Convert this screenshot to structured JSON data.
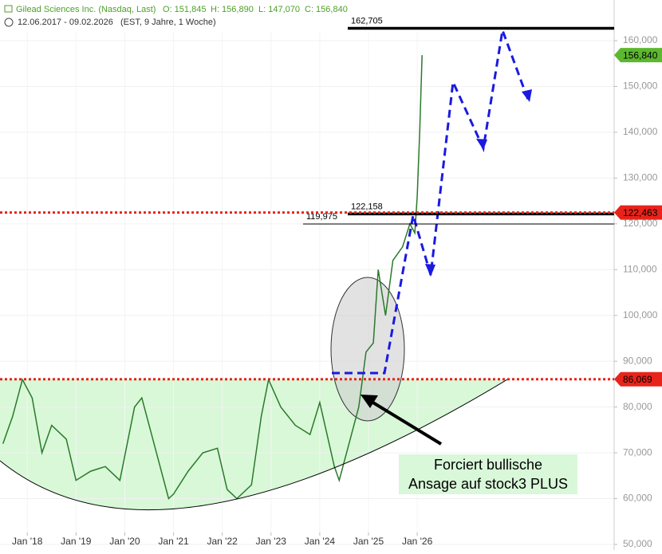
{
  "chart_data": {
    "type": "line",
    "header": {
      "title": "Gilead Sciences Inc. (Nasdaq, Last)",
      "open": "O: 151,845",
      "high": "H: 156,890",
      "low": "L: 147,070",
      "close": "C: 156,840",
      "range": "12.06.2017 - 09.02.2026",
      "info": "(EST, 9 Jahre, 1 Woche)"
    },
    "annotation": [
      "Forciert bullische",
      "Ansage auf stock3 PLUS"
    ],
    "color": "#2a7a2a",
    "grid": true,
    "x": [
      2017.5,
      2017.7,
      2017.9,
      2018.1,
      2018.3,
      2018.5,
      2018.8,
      2019.0,
      2019.3,
      2019.6,
      2019.9,
      2020.2,
      2020.35,
      2020.6,
      2020.9,
      2021.0,
      2021.3,
      2021.6,
      2021.9,
      2022.1,
      2022.3,
      2022.6,
      2022.8,
      2022.95,
      2023.2,
      2023.5,
      2023.8,
      2024.0,
      2024.3,
      2024.4,
      2024.6,
      2024.8,
      2024.95,
      2025.1,
      2025.2,
      2025.35,
      2025.5,
      2025.7,
      2025.85,
      2025.95,
      2026.0,
      2026.05,
      2026.1
    ],
    "values": [
      72000,
      78000,
      86000,
      82000,
      70000,
      76000,
      73000,
      64000,
      66000,
      67000,
      64000,
      80000,
      82000,
      72000,
      60000,
      61000,
      66000,
      70000,
      71000,
      62000,
      60000,
      63000,
      78000,
      86000,
      80000,
      76000,
      74000,
      81000,
      67000,
      64000,
      72000,
      80000,
      92000,
      94000,
      110000,
      100000,
      112000,
      115000,
      120000,
      118000,
      126000,
      140000,
      156840
    ],
    "xlim": [
      2017.44,
      2030.04
    ],
    "xticks": [
      {
        "value": 2018,
        "label": "Jan '18"
      },
      {
        "value": 2019,
        "label": "Jan '19"
      },
      {
        "value": 2020,
        "label": "Jan '20"
      },
      {
        "value": 2021,
        "label": "Jan '21"
      },
      {
        "value": 2022,
        "label": "Jan '22"
      },
      {
        "value": 2023,
        "label": "Jan '23"
      },
      {
        "value": 2024,
        "label": "Jan '24"
      },
      {
        "value": 2025,
        "label": "Jan '25"
      },
      {
        "value": 2026,
        "label": "Jan '26"
      }
    ],
    "ylim": [
      48782,
      168877
    ],
    "yticks": [
      {
        "value": 50000,
        "label": "50,000"
      },
      {
        "value": 60000,
        "label": "60,000"
      },
      {
        "value": 70000,
        "label": "70,000"
      },
      {
        "value": 80000,
        "label": "80,000"
      },
      {
        "value": 90000,
        "label": "90,000"
      },
      {
        "value": 100000,
        "label": "100,000"
      },
      {
        "value": 110000,
        "label": "110,000"
      },
      {
        "value": 120000,
        "label": "120,000"
      },
      {
        "value": 130000,
        "label": "130,000"
      },
      {
        "value": 140000,
        "label": "140,000"
      },
      {
        "value": 150000,
        "label": "150,000"
      },
      {
        "value": 160000,
        "label": "160,000"
      }
    ],
    "levels": [
      {
        "value": 162705,
        "label": "162,705",
        "style": "thick",
        "color": "#000000"
      },
      {
        "value": 122158,
        "label": "122,158",
        "style": "thick",
        "color": "#000000"
      },
      {
        "value": 119975,
        "label": "119,975",
        "style": "thin",
        "color": "#000000"
      },
      {
        "value": 122463,
        "label": "122,463",
        "style": "dotted",
        "color": "#e8231a"
      },
      {
        "value": 86069,
        "label": "86,069",
        "style": "dotted",
        "color": "#e8231a"
      }
    ],
    "last_price": {
      "value": 156840,
      "label": "156,840",
      "color": "#5cb82e"
    }
  }
}
